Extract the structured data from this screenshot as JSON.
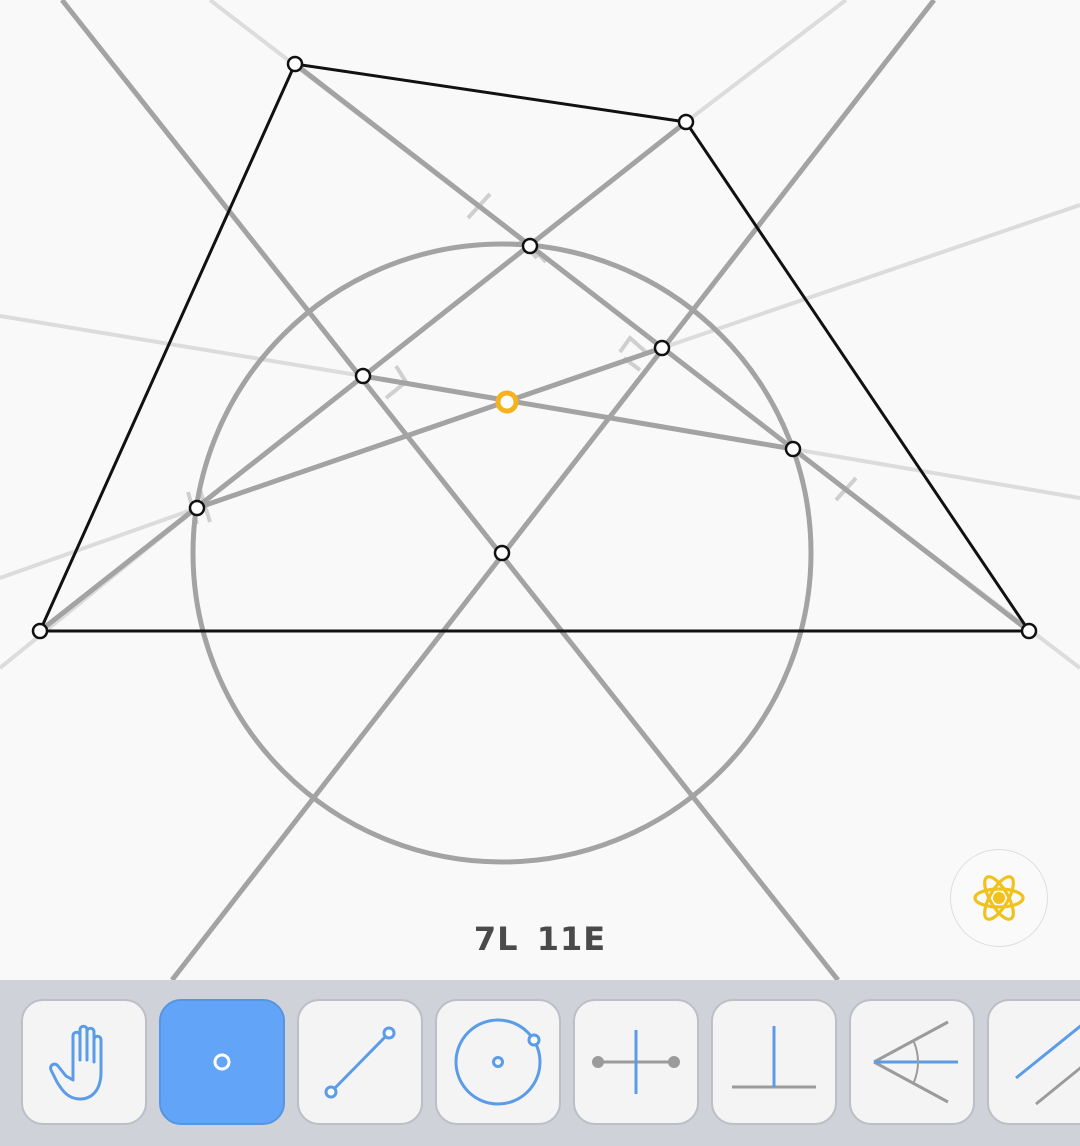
{
  "counter": {
    "lines": "7L",
    "elementary": "11E"
  },
  "colors": {
    "given_line": "#111111",
    "construction": "#a3a3a3",
    "hint": "#dcdcdc",
    "highlight_point": "#f4b21c",
    "tool_icon": "#5b9ce8",
    "tool_active_bg": "#62a5f8",
    "toolbar_bg": "#cfd2d9",
    "hint_icon": "#f1c21b"
  },
  "hint_button": {
    "icon": "atom-icon"
  },
  "toolbar": {
    "active_tool": "point",
    "tools": [
      {
        "id": "move",
        "icon": "hand-icon"
      },
      {
        "id": "point",
        "icon": "point-icon"
      },
      {
        "id": "line",
        "icon": "line-icon"
      },
      {
        "id": "circle",
        "icon": "circle-icon"
      },
      {
        "id": "perpendicular-bisector",
        "icon": "perpendicular-bisector-icon"
      },
      {
        "id": "perpendicular",
        "icon": "perpendicular-icon"
      },
      {
        "id": "angle-bisector",
        "icon": "angle-bisector-icon"
      },
      {
        "id": "parallel",
        "icon": "parallel-icon"
      }
    ]
  }
}
